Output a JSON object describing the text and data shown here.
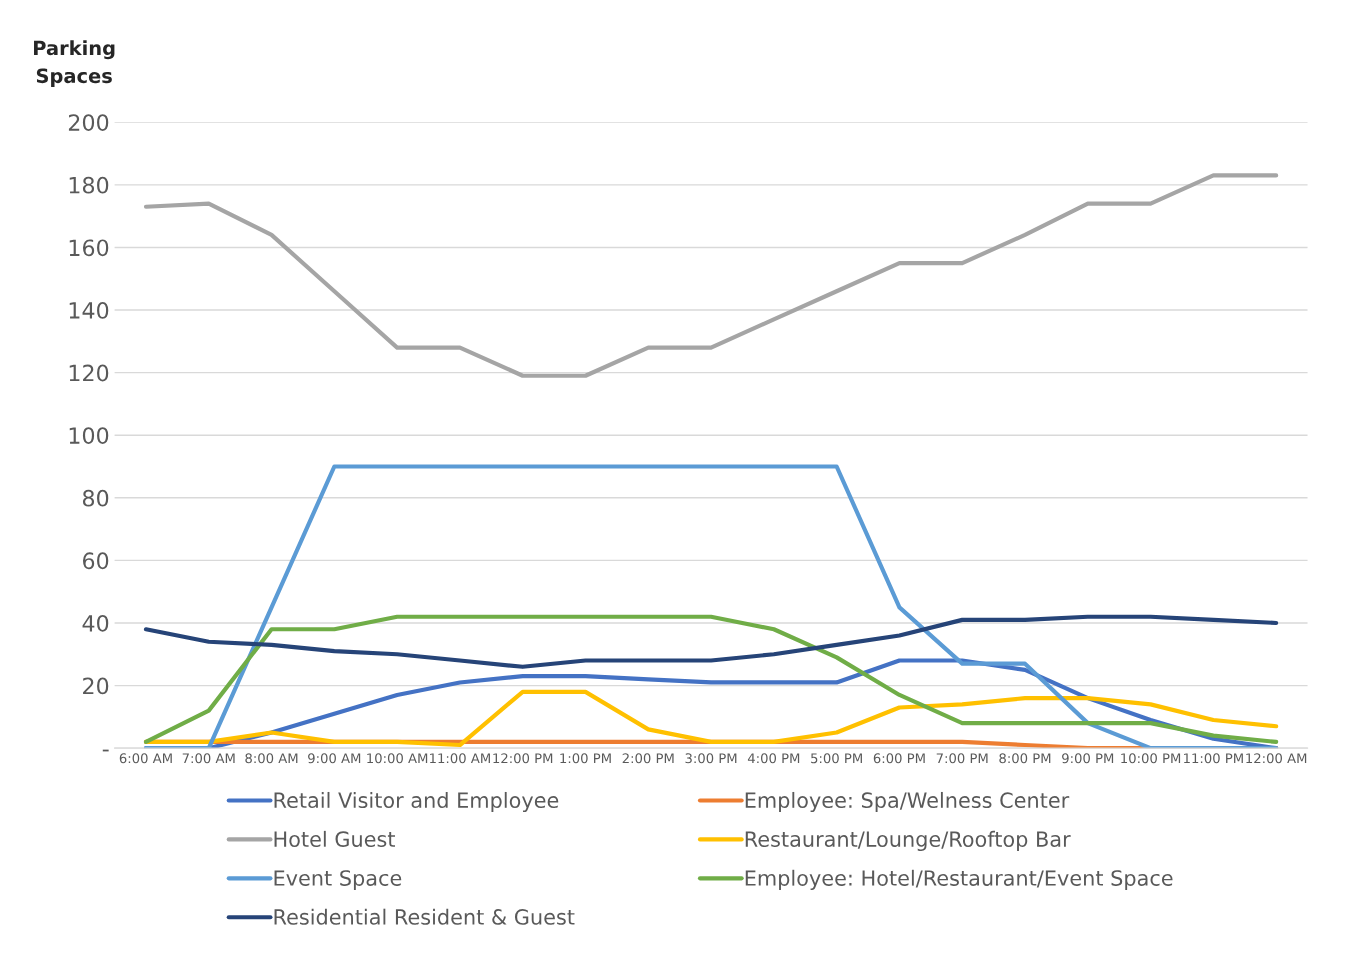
{
  "chart_data": {
    "type": "line",
    "ylabel": "Parking Spaces",
    "categories": [
      "6:00 AM",
      "7:00 AM",
      "8:00 AM",
      "9:00 AM",
      "10:00 AM",
      "11:00 AM",
      "12:00 PM",
      "1:00 PM",
      "2:00 PM",
      "3:00 PM",
      "4:00 PM",
      "5:00 PM",
      "6:00 PM",
      "7:00 PM",
      "8:00 PM",
      "9:00 PM",
      "10:00 PM",
      "11:00 PM",
      "12:00 AM"
    ],
    "series": [
      {
        "name": "Retail Visitor and Employee",
        "color": "#4472c4",
        "values": [
          0,
          0,
          5,
          11,
          17,
          21,
          23,
          23,
          22,
          21,
          21,
          21,
          28,
          28,
          25,
          16,
          9,
          3,
          0
        ]
      },
      {
        "name": "Employee: Spa/Welness Center",
        "color": "#ed7d31",
        "values": [
          2,
          2,
          2,
          2,
          2,
          2,
          2,
          2,
          2,
          2,
          2,
          2,
          2,
          2,
          1,
          0,
          0,
          0,
          0
        ]
      },
      {
        "name": "Hotel Guest",
        "color": "#a5a5a5",
        "values": [
          173,
          174,
          164,
          146,
          128,
          128,
          119,
          119,
          128,
          128,
          137,
          146,
          155,
          155,
          164,
          174,
          174,
          183,
          183
        ]
      },
      {
        "name": "Restaurant/Lounge/Rooftop Bar",
        "color": "#ffc000",
        "values": [
          2,
          2,
          5,
          2,
          2,
          1,
          18,
          18,
          6,
          2,
          2,
          5,
          13,
          14,
          16,
          16,
          14,
          9,
          7
        ]
      },
      {
        "name": "Event Space",
        "color": "#5b9bd5",
        "values": [
          0,
          0,
          45,
          90,
          90,
          90,
          90,
          90,
          90,
          90,
          90,
          90,
          45,
          27,
          27,
          8,
          0,
          0,
          0
        ]
      },
      {
        "name": "Employee: Hotel/Restaurant/Event Space",
        "color": "#70ad47",
        "values": [
          2,
          12,
          38,
          38,
          42,
          42,
          42,
          42,
          42,
          42,
          38,
          29,
          17,
          8,
          8,
          8,
          8,
          4,
          2
        ]
      },
      {
        "name": "Residential Resident & Guest",
        "color": "#264478",
        "values": [
          38,
          34,
          33,
          31,
          30,
          28,
          26,
          28,
          28,
          28,
          30,
          33,
          36,
          41,
          41,
          42,
          42,
          41,
          40
        ]
      }
    ],
    "ylim": [
      0,
      200
    ],
    "yticks": [
      {
        "value": 0,
        "label": "-"
      },
      20,
      40,
      60,
      80,
      100,
      120,
      140,
      160,
      180,
      200
    ],
    "grid": "y",
    "legend": "bottom",
    "marker": "none",
    "line_style": "solid"
  }
}
